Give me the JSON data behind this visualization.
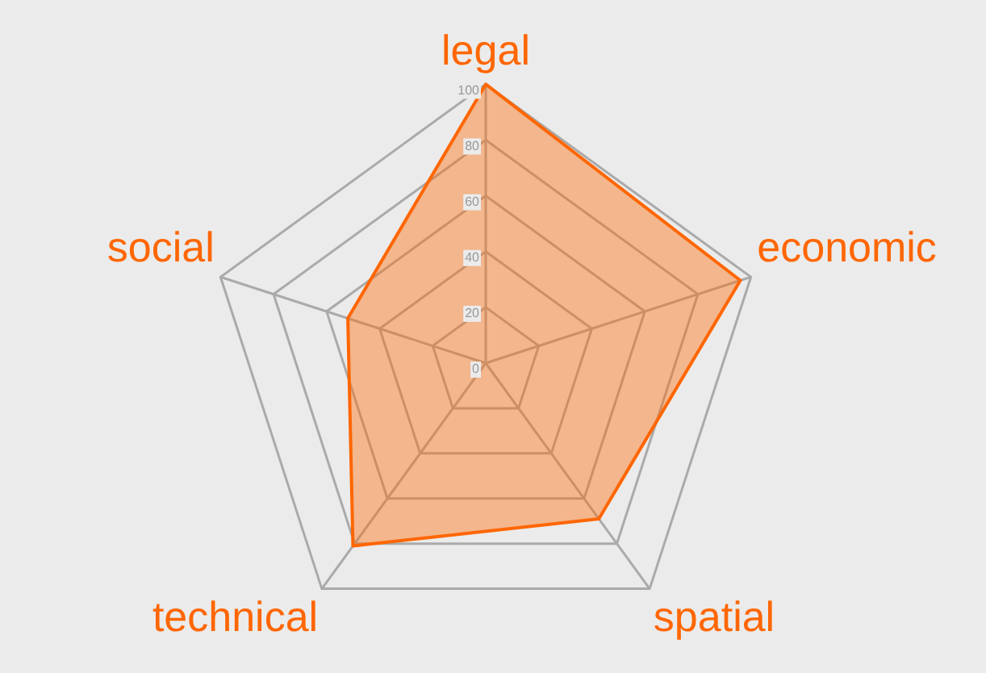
{
  "chart_data": {
    "type": "radar",
    "categories": [
      "legal",
      "economic",
      "spatial",
      "technical",
      "social"
    ],
    "series": [
      {
        "color": "#ff6600",
        "values": [
          100,
          96,
          69,
          81,
          52
        ]
      }
    ],
    "ylim": [
      0,
      100
    ],
    "yticks": [
      0,
      20,
      40,
      60,
      80,
      100
    ],
    "grid": true,
    "legend": false,
    "marker": "none"
  }
}
